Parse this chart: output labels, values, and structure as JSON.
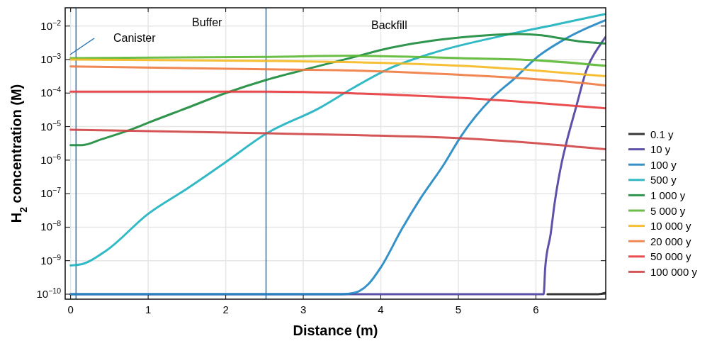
{
  "chart_data": {
    "type": "line",
    "xlabel": "Distance (m)",
    "ylabel": "H$_{2}$ concentration (M)",
    "log": "y",
    "grid": true,
    "legend": "right",
    "line_style": "solid",
    "xlim": [
      -0.07,
      6.9
    ],
    "xticks": [
      0,
      1,
      2,
      3,
      4,
      5,
      6
    ],
    "ylim": [
      7.1e-11,
      0.035
    ],
    "yticks": [
      {
        "value": 1e-10,
        "label": "10$^{−10}$"
      },
      {
        "value": 1e-09,
        "label": "10$^{−9}$"
      },
      {
        "value": 1e-08,
        "label": "10$^{−8}$"
      },
      {
        "value": 1e-07,
        "label": "10$^{−7}$"
      },
      {
        "value": 1e-06,
        "label": "10$^{−6}$"
      },
      {
        "value": 1e-05,
        "label": "10$^{−5}$"
      },
      {
        "value": 0.0001,
        "label": "10$^{−4}$"
      },
      {
        "value": 0.001,
        "label": "10$^{−3}$"
      },
      {
        "value": 0.01,
        "label": "10$^{−2}$"
      }
    ],
    "ref_lines": [
      {
        "axis": "x",
        "value": 0.07,
        "color": "#2171b5"
      },
      {
        "axis": "x",
        "value": 2.52,
        "color": "#2171b5"
      }
    ],
    "annotations": [
      "Canister",
      "Buffer",
      "Backfill"
    ],
    "series": [
      {
        "name": "0.1 y",
        "color": "#222222",
        "x": [
          6.15,
          6.8,
          6.9
        ],
        "values": [
          1e-10,
          1e-10,
          1.1e-10
        ]
      },
      {
        "name": "10 y",
        "color": "#4b3fa0",
        "x": [
          0,
          6.1,
          6.12,
          6.19,
          6.24,
          6.33,
          6.38,
          6.52,
          6.65,
          6.83,
          6.9
        ],
        "values": [
          1e-10,
          1e-10,
          6.3e-10,
          6.3e-09,
          5e-08,
          7.9e-07,
          2.5e-06,
          4e-05,
          0.00047,
          0.0028,
          0.0048
        ]
      },
      {
        "name": "100 y",
        "color": "#1f86c2",
        "x": [
          0,
          3.5,
          3.66,
          3.84,
          4.0,
          4.27,
          4.51,
          4.82,
          5.03,
          5.42,
          5.73,
          6.0,
          6.43,
          6.9
        ],
        "values": [
          1e-10,
          1e-10,
          1.1e-10,
          2e-10,
          6.3e-10,
          8.7e-09,
          7.1e-08,
          7.9e-07,
          5e-06,
          6.6e-05,
          0.00028,
          0.0011,
          0.0048,
          0.015
        ]
      },
      {
        "name": "500 y",
        "color": "#1bb3c0",
        "x": [
          0,
          0.15,
          0.46,
          1.0,
          1.5,
          1.98,
          2.53,
          3.2,
          3.66,
          4.11,
          4.72,
          5.58,
          6.25,
          6.9
        ],
        "values": [
          7.2e-10,
          7.9e-10,
          2e-09,
          2.5e-08,
          1.4e-07,
          8.1e-07,
          6.3e-06,
          3.5e-05,
          0.00015,
          0.00054,
          0.0017,
          0.0052,
          0.011,
          0.023
        ]
      },
      {
        "name": "1 000 y",
        "color": "#1a8a3a",
        "x": [
          0,
          0.15,
          0.4,
          0.8,
          1.0,
          1.5,
          2.0,
          2.53,
          3.1,
          3.66,
          4.11,
          5.03,
          5.79,
          6.1,
          6.55,
          6.9
        ],
        "values": [
          2.8e-06,
          2.8e-06,
          4.2e-06,
          8.5e-06,
          1.3e-05,
          3.6e-05,
          0.0001,
          0.00025,
          0.00056,
          0.0012,
          0.0022,
          0.0046,
          0.0058,
          0.0052,
          0.0035,
          0.003
        ]
      },
      {
        "name": "5 000 y",
        "color": "#5cb832",
        "x": [
          0,
          2.53,
          3.66,
          5.03,
          6.0,
          6.9
        ],
        "values": [
          0.0011,
          0.0012,
          0.0013,
          0.0011,
          0.00095,
          0.00065
        ]
      },
      {
        "name": "10 000 y",
        "color": "#f5b820",
        "x": [
          0,
          2.53,
          3.66,
          5.03,
          6.0,
          6.9
        ],
        "values": [
          0.001,
          0.00091,
          0.00083,
          0.00065,
          0.00047,
          0.00032
        ]
      },
      {
        "name": "20 000 y",
        "color": "#f07a40",
        "x": [
          0,
          2.53,
          3.66,
          5.03,
          6.0,
          6.9
        ],
        "values": [
          0.00062,
          0.00051,
          0.00047,
          0.00035,
          0.00026,
          0.00017
        ]
      },
      {
        "name": "50 000 y",
        "color": "#e83a3c",
        "x": [
          0,
          2.53,
          3.66,
          5.03,
          6.0,
          6.9
        ],
        "values": [
          0.00011,
          0.00011,
          9.8e-05,
          7.2e-05,
          5.1e-05,
          3.5e-05
        ]
      },
      {
        "name": "100 000 y",
        "color": "#d04444",
        "x": [
          0,
          2.53,
          3.66,
          5.03,
          6.0,
          6.9
        ],
        "values": [
          8.1e-06,
          6.3e-06,
          5.6e-06,
          4.5e-06,
          3.2e-06,
          2.1e-06
        ]
      }
    ]
  }
}
